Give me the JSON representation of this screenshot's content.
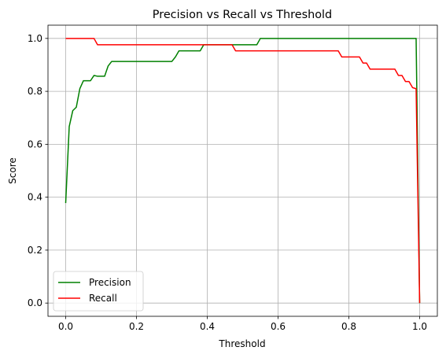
{
  "chart_data": {
    "type": "line",
    "title": "Precision vs Recall vs Threshold",
    "xlabel": "Threshold",
    "ylabel": "Score",
    "xlim": [
      -0.05,
      1.05
    ],
    "ylim": [
      -0.05,
      1.05
    ],
    "xticks": [
      "0.0",
      "0.2",
      "0.4",
      "0.6",
      "0.8",
      "1.0"
    ],
    "xtick_values": [
      0,
      0.2,
      0.4,
      0.6,
      0.8,
      1.0
    ],
    "yticks": [
      "0.0",
      "0.2",
      "0.4",
      "0.6",
      "0.8",
      "1.0"
    ],
    "ytick_values": [
      0,
      0.2,
      0.4,
      0.6,
      0.8,
      1.0
    ],
    "grid": true,
    "legend": "bottom-left",
    "series": [
      {
        "name": "Precision",
        "color": "#008000",
        "x": [
          0.0,
          0.01,
          0.02,
          0.03,
          0.04,
          0.05,
          0.06,
          0.07,
          0.08,
          0.09,
          0.1,
          0.11,
          0.12,
          0.13,
          0.2,
          0.29,
          0.3,
          0.31,
          0.32,
          0.37,
          0.38,
          0.39,
          0.48,
          0.54,
          0.55,
          0.98,
          0.99,
          1.0
        ],
        "y": [
          0.378,
          0.667,
          0.727,
          0.74,
          0.81,
          0.84,
          0.84,
          0.84,
          0.86,
          0.857,
          0.857,
          0.857,
          0.896,
          0.913,
          0.913,
          0.913,
          0.913,
          0.93,
          0.953,
          0.953,
          0.953,
          0.976,
          0.976,
          0.976,
          1.0,
          1.0,
          1.0,
          0.0
        ]
      },
      {
        "name": "Recall",
        "color": "#ff0000",
        "x": [
          0.0,
          0.08,
          0.09,
          0.47,
          0.48,
          0.77,
          0.78,
          0.83,
          0.84,
          0.85,
          0.86,
          0.93,
          0.94,
          0.95,
          0.96,
          0.97,
          0.98,
          0.99,
          1.0
        ],
        "y": [
          1.0,
          1.0,
          0.976,
          0.976,
          0.953,
          0.953,
          0.93,
          0.93,
          0.907,
          0.907,
          0.884,
          0.884,
          0.86,
          0.86,
          0.837,
          0.837,
          0.814,
          0.81,
          0.0
        ]
      }
    ]
  }
}
